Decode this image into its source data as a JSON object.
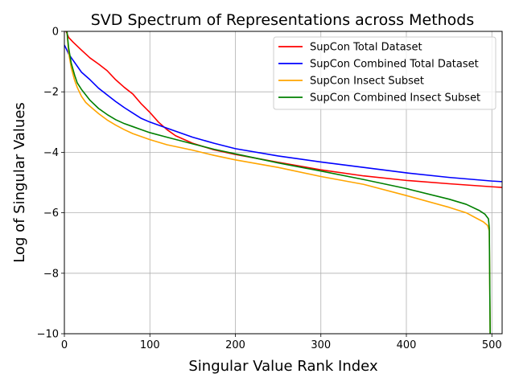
{
  "chart_data": {
    "type": "line",
    "title": "SVD Spectrum of Representations across Methods",
    "xlabel": "Singular Value Rank Index",
    "ylabel": "Log of Singular Values",
    "xlim": [
      0,
      512
    ],
    "ylim": [
      -10,
      0
    ],
    "xticks": [
      0,
      100,
      200,
      300,
      400,
      500
    ],
    "xtick_labels": [
      "0",
      "100",
      "200",
      "300",
      "400",
      "500"
    ],
    "yticks": [
      -10,
      -8,
      -6,
      -4,
      -2,
      0
    ],
    "ytick_labels": [
      "−10",
      "−8",
      "−6",
      "−4",
      "−2",
      "0"
    ],
    "grid": true,
    "legend_position": "top-right",
    "series": [
      {
        "name": "SupCon Total Dataset",
        "color": "#ff0000",
        "points": [
          [
            2,
            0
          ],
          [
            5,
            -0.2
          ],
          [
            10,
            -0.35
          ],
          [
            20,
            -0.62
          ],
          [
            30,
            -0.88
          ],
          [
            40,
            -1.08
          ],
          [
            50,
            -1.3
          ],
          [
            60,
            -1.6
          ],
          [
            70,
            -1.85
          ],
          [
            80,
            -2.07
          ],
          [
            90,
            -2.4
          ],
          [
            100,
            -2.68
          ],
          [
            110,
            -3.0
          ],
          [
            120,
            -3.25
          ],
          [
            130,
            -3.45
          ],
          [
            150,
            -3.7
          ],
          [
            175,
            -3.92
          ],
          [
            200,
            -4.07
          ],
          [
            250,
            -4.33
          ],
          [
            300,
            -4.58
          ],
          [
            350,
            -4.78
          ],
          [
            400,
            -4.93
          ],
          [
            450,
            -5.04
          ],
          [
            500,
            -5.14
          ],
          [
            512,
            -5.16
          ]
        ]
      },
      {
        "name": "SupCon Combined Total Dataset",
        "color": "#0000ff",
        "points": [
          [
            0,
            -0.45
          ],
          [
            3,
            -0.62
          ],
          [
            5,
            -0.75
          ],
          [
            10,
            -0.95
          ],
          [
            15,
            -1.15
          ],
          [
            20,
            -1.35
          ],
          [
            30,
            -1.6
          ],
          [
            40,
            -1.88
          ],
          [
            50,
            -2.1
          ],
          [
            60,
            -2.32
          ],
          [
            70,
            -2.52
          ],
          [
            80,
            -2.7
          ],
          [
            90,
            -2.88
          ],
          [
            100,
            -3.0
          ],
          [
            120,
            -3.2
          ],
          [
            150,
            -3.5
          ],
          [
            175,
            -3.7
          ],
          [
            200,
            -3.88
          ],
          [
            250,
            -4.12
          ],
          [
            300,
            -4.32
          ],
          [
            350,
            -4.5
          ],
          [
            400,
            -4.68
          ],
          [
            450,
            -4.83
          ],
          [
            500,
            -4.95
          ],
          [
            512,
            -4.97
          ]
        ]
      },
      {
        "name": "SupCon Insect Subset",
        "color": "#ffa500",
        "points": [
          [
            3,
            0
          ],
          [
            5,
            -0.7
          ],
          [
            8,
            -1.2
          ],
          [
            12,
            -1.62
          ],
          [
            15,
            -1.85
          ],
          [
            20,
            -2.15
          ],
          [
            25,
            -2.35
          ],
          [
            30,
            -2.48
          ],
          [
            40,
            -2.72
          ],
          [
            50,
            -2.93
          ],
          [
            60,
            -3.1
          ],
          [
            70,
            -3.25
          ],
          [
            80,
            -3.38
          ],
          [
            90,
            -3.48
          ],
          [
            100,
            -3.58
          ],
          [
            120,
            -3.75
          ],
          [
            150,
            -3.93
          ],
          [
            175,
            -4.1
          ],
          [
            200,
            -4.25
          ],
          [
            250,
            -4.5
          ],
          [
            300,
            -4.8
          ],
          [
            350,
            -5.06
          ],
          [
            400,
            -5.43
          ],
          [
            450,
            -5.82
          ],
          [
            470,
            -6.0
          ],
          [
            480,
            -6.15
          ],
          [
            490,
            -6.3
          ],
          [
            495,
            -6.42
          ],
          [
            497,
            -6.6
          ],
          [
            498,
            -10
          ]
        ]
      },
      {
        "name": "SupCon Combined Insect Subset",
        "color": "#008000",
        "points": [
          [
            3,
            0
          ],
          [
            5,
            -0.55
          ],
          [
            8,
            -1.05
          ],
          [
            12,
            -1.45
          ],
          [
            15,
            -1.7
          ],
          [
            20,
            -1.92
          ],
          [
            25,
            -2.1
          ],
          [
            30,
            -2.28
          ],
          [
            40,
            -2.55
          ],
          [
            50,
            -2.75
          ],
          [
            60,
            -2.92
          ],
          [
            70,
            -3.05
          ],
          [
            80,
            -3.15
          ],
          [
            90,
            -3.25
          ],
          [
            100,
            -3.35
          ],
          [
            120,
            -3.5
          ],
          [
            150,
            -3.72
          ],
          [
            175,
            -3.9
          ],
          [
            200,
            -4.05
          ],
          [
            250,
            -4.35
          ],
          [
            300,
            -4.62
          ],
          [
            350,
            -4.9
          ],
          [
            400,
            -5.2
          ],
          [
            450,
            -5.55
          ],
          [
            470,
            -5.72
          ],
          [
            485,
            -5.92
          ],
          [
            492,
            -6.05
          ],
          [
            496,
            -6.2
          ],
          [
            497,
            -6.5
          ],
          [
            498,
            -10
          ]
        ]
      }
    ]
  }
}
